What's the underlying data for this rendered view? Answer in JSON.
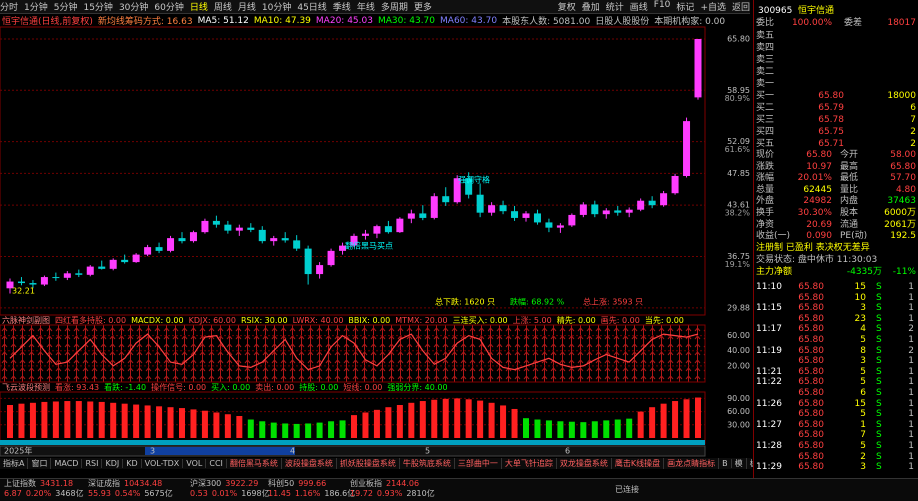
{
  "menu": [
    "分时",
    "1分钟",
    "5分钟",
    "15分钟",
    "30分钟",
    "60分钟",
    "日线",
    "周线",
    "月线",
    "10分钟",
    "45日线",
    "季线",
    "年线",
    "多周期",
    "更多"
  ],
  "tools": [
    "复权",
    "叠加",
    "统计",
    "画线",
    "F10",
    "标记",
    "+自选",
    "返回"
  ],
  "info": {
    "name": "恒宇信通(日线,前复权)",
    "items": [
      "新均线筹码方式: 16.63",
      "MA5: 51.12",
      "MA10: 47.39",
      "MA20: 45.03",
      "MA30: 43.70",
      "MA60: 43.70",
      "本股东人数: 5081.00",
      "日股人股股份",
      "本期机构家: 0.00"
    ]
  },
  "kline": {
    "ylim": [
      29.2,
      66.6
    ],
    "yticks": [
      {
        "value": 65.8,
        "label": "65.80"
      },
      {
        "value": 58.95,
        "label": "58.95"
      },
      {
        "value": 52.09,
        "label": "52.09"
      },
      {
        "value": 47.85,
        "label": "47.85"
      },
      {
        "value": 43.61,
        "label": "43.61"
      },
      {
        "value": 36.75,
        "label": "36.75"
      },
      {
        "value": 29.88,
        "label": "29.88"
      }
    ],
    "fib": [
      "80.9%",
      "61.6%",
      "38.2%",
      "19.1%"
    ],
    "up_color": "#ff3cff",
    "down_color": "#00d0d0",
    "candles": [
      [
        32.5,
        33.8,
        31.8,
        33.4
      ],
      [
        33.4,
        34.0,
        32.9,
        33.2
      ],
      [
        33.2,
        33.6,
        32.5,
        33.0
      ],
      [
        33.0,
        34.2,
        32.8,
        34.0
      ],
      [
        34.0,
        34.6,
        33.5,
        33.9
      ],
      [
        33.9,
        34.8,
        33.6,
        34.5
      ],
      [
        34.5,
        35.0,
        34.0,
        34.3
      ],
      [
        34.3,
        35.6,
        34.1,
        35.4
      ],
      [
        35.4,
        36.2,
        35.0,
        35.1
      ],
      [
        35.1,
        36.5,
        34.9,
        36.3
      ],
      [
        36.3,
        37.0,
        35.8,
        36.0
      ],
      [
        36.0,
        37.2,
        35.9,
        37.0
      ],
      [
        37.0,
        38.3,
        36.8,
        38.0
      ],
      [
        38.0,
        38.6,
        37.2,
        37.5
      ],
      [
        37.5,
        39.5,
        37.3,
        39.2
      ],
      [
        39.2,
        40.0,
        38.5,
        38.8
      ],
      [
        38.8,
        40.2,
        38.6,
        40.0
      ],
      [
        40.0,
        41.8,
        39.8,
        41.5
      ],
      [
        41.5,
        42.2,
        40.6,
        41.0
      ],
      [
        41.0,
        41.5,
        39.8,
        40.2
      ],
      [
        40.2,
        41.0,
        39.5,
        40.6
      ],
      [
        40.6,
        41.2,
        40.0,
        40.3
      ],
      [
        40.3,
        40.8,
        38.5,
        38.8
      ],
      [
        38.8,
        39.5,
        38.2,
        39.2
      ],
      [
        39.2,
        40.0,
        38.6,
        38.9
      ],
      [
        38.9,
        39.6,
        37.5,
        37.8
      ],
      [
        37.8,
        38.2,
        33.0,
        34.4
      ],
      [
        34.4,
        36.0,
        33.8,
        35.6
      ],
      [
        35.6,
        37.8,
        35.4,
        37.5
      ],
      [
        37.5,
        38.6,
        37.0,
        38.2
      ],
      [
        38.2,
        39.8,
        38.0,
        39.5
      ],
      [
        39.5,
        40.3,
        39.0,
        39.8
      ],
      [
        39.8,
        41.0,
        39.2,
        40.8
      ],
      [
        40.8,
        41.5,
        39.8,
        40.0
      ],
      [
        40.0,
        42.0,
        39.9,
        41.8
      ],
      [
        41.8,
        43.0,
        41.2,
        42.5
      ],
      [
        42.5,
        43.6,
        41.6,
        41.9
      ],
      [
        41.9,
        45.2,
        41.7,
        44.8
      ],
      [
        44.8,
        46.0,
        43.5,
        44.0
      ],
      [
        44.0,
        47.6,
        43.8,
        47.2
      ],
      [
        47.2,
        48.0,
        44.5,
        45.0
      ],
      [
        45.0,
        46.5,
        42.0,
        42.6
      ],
      [
        42.6,
        44.0,
        42.2,
        43.6
      ],
      [
        43.6,
        44.2,
        42.4,
        42.8
      ],
      [
        42.8,
        43.5,
        41.5,
        41.9
      ],
      [
        41.9,
        42.8,
        41.4,
        42.5
      ],
      [
        42.5,
        43.0,
        41.0,
        41.3
      ],
      [
        41.3,
        41.8,
        40.0,
        40.6
      ],
      [
        40.6,
        41.2,
        39.9,
        40.9
      ],
      [
        40.9,
        42.5,
        40.7,
        42.3
      ],
      [
        42.3,
        44.0,
        42.0,
        43.7
      ],
      [
        43.7,
        44.2,
        42.0,
        42.4
      ],
      [
        42.4,
        43.2,
        41.8,
        42.9
      ],
      [
        42.9,
        43.5,
        42.2,
        42.6
      ],
      [
        42.6,
        43.3,
        42.0,
        43.0
      ],
      [
        43.0,
        44.5,
        42.8,
        44.2
      ],
      [
        44.2,
        44.8,
        43.2,
        43.6
      ],
      [
        43.6,
        45.5,
        43.4,
        45.2
      ],
      [
        45.2,
        47.8,
        45.0,
        47.5
      ],
      [
        47.5,
        55.3,
        47.3,
        54.83
      ],
      [
        58.0,
        65.8,
        57.7,
        65.8
      ]
    ],
    "annotations": {
      "fall": "总下跌: 1620 只",
      "fall_pct": "跌幅: 68.92 %",
      "rise": "总上涨: 3593 只",
      "signal1": "强调守格",
      "signal2": "翻倍黑马买点",
      "low": "32.21"
    }
  },
  "panel2": {
    "title": "六脉神剑副图",
    "header": [
      "四红看多持股: 0.00",
      "MACDX: 0.00",
      "KDJX: 60.00",
      "RSIX: 30.00",
      "LWRX: 40.00",
      "BBIX: 0.00",
      "MTMX: 20.00",
      "三连买入: 0.00",
      "上涨: 5.00",
      "精先: 0.00",
      "画先: 0.00",
      "当先: 0.00"
    ],
    "ylim": [
      0,
      70
    ],
    "yticks": [
      {
        "value": 60,
        "label": "60.00"
      },
      {
        "value": 40,
        "label": "40.00"
      },
      {
        "value": 20,
        "label": "20.00"
      }
    ],
    "color": "#ff4040",
    "values": [
      30,
      45,
      60,
      40,
      22,
      25,
      40,
      55,
      35,
      20,
      30,
      50,
      62,
      45,
      25,
      22,
      35,
      58,
      60,
      38,
      20,
      18,
      25,
      40,
      55,
      30,
      15,
      20,
      45,
      60,
      50,
      28,
      20,
      35,
      55,
      62,
      40,
      22,
      30,
      50,
      60,
      55,
      30,
      18,
      15,
      20,
      25,
      30,
      22,
      18,
      20,
      28,
      35,
      30,
      25,
      40,
      55,
      62,
      60,
      58,
      62
    ]
  },
  "panel3": {
    "title": "飞云波段预测",
    "header": [
      "看涨: 93.43",
      "看跌: -1.40",
      "操作信号: 0.00",
      "买入: 0.00",
      "卖出: 0.00",
      "持股: 0.00",
      "短线: 0.00",
      "强弱分界: 40.00"
    ],
    "ylim": [
      0,
      100
    ],
    "yticks": [
      {
        "value": 90,
        "label": "90.00"
      },
      {
        "value": 60,
        "label": "60.00"
      },
      {
        "value": 30,
        "label": "30.00"
      }
    ],
    "series": [
      {
        "color": "#ff2020",
        "values": [
          75,
          78,
          80,
          82,
          83,
          84,
          84,
          83,
          82,
          80,
          78,
          76,
          74,
          72,
          70,
          68,
          65,
          62,
          58,
          54,
          50,
          null,
          null,
          null,
          null,
          null,
          null,
          null,
          null,
          null,
          52,
          58,
          64,
          70,
          75,
          80,
          84,
          87,
          89,
          90,
          88,
          85,
          80,
          74,
          66,
          null,
          null,
          null,
          null,
          null,
          null,
          null,
          null,
          null,
          null,
          60,
          70,
          78,
          84,
          88,
          92
        ]
      },
      {
        "color": "#00e000",
        "values": [
          null,
          null,
          null,
          null,
          null,
          null,
          null,
          null,
          null,
          null,
          null,
          null,
          null,
          null,
          null,
          null,
          null,
          null,
          null,
          null,
          null,
          42,
          38,
          35,
          33,
          32,
          33,
          35,
          38,
          40,
          null,
          null,
          null,
          null,
          null,
          null,
          null,
          null,
          null,
          null,
          null,
          null,
          null,
          null,
          null,
          45,
          42,
          40,
          38,
          37,
          36,
          38,
          40,
          42,
          44,
          null,
          null,
          null,
          null,
          null,
          null
        ]
      }
    ]
  },
  "timeline": [
    "2025年",
    "3",
    "4",
    "5",
    "6"
  ],
  "tabs": [
    "指标A",
    "窗口",
    "MACD",
    "RSI",
    "KDJ",
    "KD",
    "VOL-TDX",
    "VOL",
    "CCI",
    "翻倍黑马系统",
    "波段操盘系统",
    "抓妖股操盘系统",
    "牛股筑底系统",
    "三部曲中一",
    "大单飞针追踪",
    "双龙操盘系统",
    "鹰击K线操盘",
    "画龙点睛指标",
    "B",
    "模",
    "板"
  ],
  "quote": {
    "code": "300965",
    "name": "恒宇信通",
    "weibi": [
      "委比",
      "100.00%",
      "委差",
      "18017"
    ],
    "asks": [
      "卖五",
      "卖四",
      "卖三",
      "卖二",
      "卖一"
    ],
    "bids": [
      [
        "买一",
        "65.80",
        "18000"
      ],
      [
        "买二",
        "65.79",
        "6"
      ],
      [
        "买三",
        "65.78",
        "7"
      ],
      [
        "买四",
        "65.75",
        "2"
      ],
      [
        "买五",
        "65.71",
        "2"
      ]
    ],
    "stats": [
      [
        "现价",
        "65.80",
        "今开",
        "58.00"
      ],
      [
        "涨跌",
        "10.97",
        "最高",
        "65.80"
      ],
      [
        "涨幅",
        "20.01%",
        "最低",
        "57.70"
      ],
      [
        "总量",
        "62445",
        "量比",
        "4.80"
      ],
      [
        "外盘",
        "24982",
        "内盘",
        "37463"
      ],
      [
        "换手",
        "30.30%",
        "股本",
        "6000万"
      ],
      [
        "净资",
        "20.69",
        "流通",
        "2061万"
      ],
      [
        "收益(一)",
        "0.090",
        "PE(动)",
        "192.5"
      ]
    ],
    "tags": "注册制 已盈利 表决权无差异",
    "status": "交易状态: 盘中休市 11:30:03",
    "flow": [
      "主力净额",
      "-4335万",
      "-11%"
    ],
    "trades": [
      {
        "time": "11:10",
        "price": "65.80",
        "vol": "15",
        "bs": "S",
        "n": "1"
      },
      {
        "price": "65.80",
        "vol": "10",
        "bs": "S",
        "n": "1"
      },
      {
        "time": "11:15",
        "price": "65.80",
        "vol": "3",
        "bs": "S",
        "n": "1"
      },
      {
        "price": "65.80",
        "vol": "23",
        "bs": "S",
        "n": "1"
      },
      {
        "time": "11:17",
        "price": "65.80",
        "vol": "4",
        "bs": "S",
        "n": "2"
      },
      {
        "price": "65.80",
        "vol": "5",
        "bs": "S",
        "n": "1"
      },
      {
        "time": "11:19",
        "price": "65.80",
        "vol": "8",
        "bs": "S",
        "n": "2"
      },
      {
        "price": "65.80",
        "vol": "3",
        "bs": "S",
        "n": "1"
      },
      {
        "time": "11:21",
        "price": "65.80",
        "vol": "5",
        "bs": "S",
        "n": "1"
      },
      {
        "time": "11:22",
        "price": "65.80",
        "vol": "5",
        "bs": "S",
        "n": "1"
      },
      {
        "price": "65.80",
        "vol": "6",
        "bs": "S",
        "n": "1"
      },
      {
        "time": "11:26",
        "price": "65.80",
        "vol": "15",
        "bs": "S",
        "n": "1"
      },
      {
        "price": "65.80",
        "vol": "5",
        "bs": "S",
        "n": "1"
      },
      {
        "time": "11:27",
        "price": "65.80",
        "vol": "1",
        "bs": "S",
        "n": "1"
      },
      {
        "price": "65.80",
        "vol": "7",
        "bs": "S",
        "n": "1"
      },
      {
        "time": "11:28",
        "price": "65.80",
        "vol": "5",
        "bs": "S",
        "n": "1"
      },
      {
        "price": "65.80",
        "vol": "2",
        "bs": "S",
        "n": "1"
      },
      {
        "time": "11:29",
        "price": "65.80",
        "vol": "3",
        "bs": "S",
        "n": "1"
      }
    ]
  },
  "indices": [
    {
      "name": "上证指数",
      "price": "3431.18",
      "chg": "6.87",
      "pct": "0.20%",
      "amt": "3468亿"
    },
    {
      "name": "深证成指",
      "price": "10434.48",
      "chg": "55.93",
      "pct": "0.54%",
      "amt": "5675亿"
    },
    {
      "name": "沪深300",
      "price": "3922.29",
      "chg": "0.53",
      "pct": "0.01%",
      "amt": "1698亿"
    },
    {
      "name": "科创50",
      "price": "999.66",
      "chg": "11.45",
      "pct": "1.16%",
      "amt": "186.6亿"
    },
    {
      "name": "创业板指",
      "price": "2144.06",
      "chg": "19.72",
      "pct": "0.93%",
      "amt": "2810亿"
    }
  ],
  "connection": "已连接"
}
